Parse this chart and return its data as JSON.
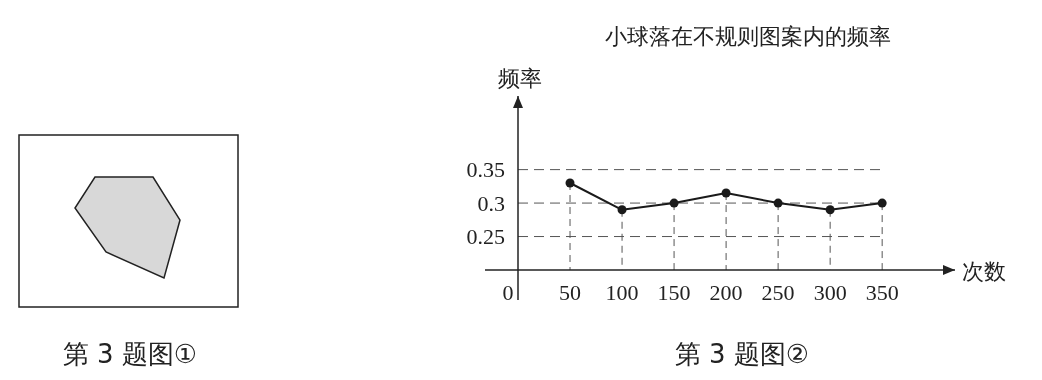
{
  "chart_data": {
    "type": "line",
    "title": "小球落在不规则图案内的频率",
    "xlabel": "次数",
    "ylabel": "频率",
    "x": [
      50,
      100,
      150,
      200,
      250,
      300,
      350
    ],
    "series": [
      {
        "color": "#1a1a1a",
        "values": [
          0.33,
          0.29,
          0.3,
          0.315,
          0.3,
          0.29,
          0.3
        ]
      }
    ],
    "xlim": [
      0,
      420
    ],
    "xticks": [
      {
        "value": 0,
        "label": "0"
      },
      50,
      100,
      150,
      200,
      250,
      300,
      350
    ],
    "ylim": [
      0.2,
      0.46
    ],
    "yticks": [
      0.25,
      0.3,
      0.35
    ],
    "grid": "y",
    "ref_lines": [
      {
        "axis": "x",
        "value": 50,
        "line_style": "dashed"
      },
      {
        "axis": "x",
        "value": 100,
        "line_style": "dashed"
      },
      {
        "axis": "x",
        "value": 150,
        "line_style": "dashed"
      },
      {
        "axis": "x",
        "value": 200,
        "line_style": "dashed"
      },
      {
        "axis": "x",
        "value": 250,
        "line_style": "dashed"
      },
      {
        "axis": "x",
        "value": 300,
        "line_style": "dashed"
      },
      {
        "axis": "x",
        "value": 350,
        "line_style": "dashed"
      }
    ],
    "marker": "circle",
    "line_style": "solid",
    "annotations": [
      "第 3 题图①",
      "第 3 题图②"
    ]
  }
}
